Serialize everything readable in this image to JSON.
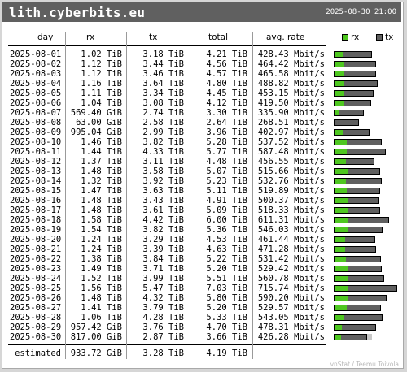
{
  "header": {
    "hostname": "lith.cyberbits.eu",
    "timestamp": "2025-08-30 21:00"
  },
  "columns": {
    "day": "day",
    "rx": "rx",
    "tx": "tx",
    "total": "total",
    "rate": "avg. rate"
  },
  "legend": {
    "rx_label": "rx",
    "tx_label": "tx",
    "rx_color": "#4ec720",
    "tx_color": "#606060"
  },
  "rows": [
    {
      "day": "2025-08-01",
      "rx": "1.02 TiB",
      "tx": "3.18 TiB",
      "total": "4.21 TiB",
      "rate": "428.43 Mbit/s",
      "rx_tib": 1.02,
      "tx_tib": 3.18
    },
    {
      "day": "2025-08-02",
      "rx": "1.12 TiB",
      "tx": "3.44 TiB",
      "total": "4.56 TiB",
      "rate": "464.42 Mbit/s",
      "rx_tib": 1.12,
      "tx_tib": 3.44
    },
    {
      "day": "2025-08-03",
      "rx": "1.12 TiB",
      "tx": "3.46 TiB",
      "total": "4.57 TiB",
      "rate": "465.58 Mbit/s",
      "rx_tib": 1.12,
      "tx_tib": 3.46
    },
    {
      "day": "2025-08-04",
      "rx": "1.16 TiB",
      "tx": "3.64 TiB",
      "total": "4.80 TiB",
      "rate": "488.82 Mbit/s",
      "rx_tib": 1.16,
      "tx_tib": 3.64
    },
    {
      "day": "2025-08-05",
      "rx": "1.11 TiB",
      "tx": "3.34 TiB",
      "total": "4.45 TiB",
      "rate": "453.15 Mbit/s",
      "rx_tib": 1.11,
      "tx_tib": 3.34
    },
    {
      "day": "2025-08-06",
      "rx": "1.04 TiB",
      "tx": "3.08 TiB",
      "total": "4.12 TiB",
      "rate": "419.50 Mbit/s",
      "rx_tib": 1.04,
      "tx_tib": 3.08
    },
    {
      "day": "2025-08-07",
      "rx": "569.40 GiB",
      "tx": "2.74 TiB",
      "total": "3.30 TiB",
      "rate": "335.90 Mbit/s",
      "rx_tib": 0.556,
      "tx_tib": 2.74
    },
    {
      "day": "2025-08-08",
      "rx": "63.00 GiB",
      "tx": "2.58 TiB",
      "total": "2.64 TiB",
      "rate": "268.51 Mbit/s",
      "rx_tib": 0.062,
      "tx_tib": 2.58
    },
    {
      "day": "2025-08-09",
      "rx": "995.04 GiB",
      "tx": "2.99 TiB",
      "total": "3.96 TiB",
      "rate": "402.97 Mbit/s",
      "rx_tib": 0.972,
      "tx_tib": 2.99
    },
    {
      "day": "2025-08-10",
      "rx": "1.46 TiB",
      "tx": "3.82 TiB",
      "total": "5.28 TiB",
      "rate": "537.52 Mbit/s",
      "rx_tib": 1.46,
      "tx_tib": 3.82
    },
    {
      "day": "2025-08-11",
      "rx": "1.44 TiB",
      "tx": "4.33 TiB",
      "total": "5.77 TiB",
      "rate": "587.48 Mbit/s",
      "rx_tib": 1.44,
      "tx_tib": 4.33
    },
    {
      "day": "2025-08-12",
      "rx": "1.37 TiB",
      "tx": "3.11 TiB",
      "total": "4.48 TiB",
      "rate": "456.55 Mbit/s",
      "rx_tib": 1.37,
      "tx_tib": 3.11
    },
    {
      "day": "2025-08-13",
      "rx": "1.48 TiB",
      "tx": "3.58 TiB",
      "total": "5.07 TiB",
      "rate": "515.66 Mbit/s",
      "rx_tib": 1.48,
      "tx_tib": 3.58
    },
    {
      "day": "2025-08-14",
      "rx": "1.32 TiB",
      "tx": "3.92 TiB",
      "total": "5.23 TiB",
      "rate": "532.76 Mbit/s",
      "rx_tib": 1.32,
      "tx_tib": 3.92
    },
    {
      "day": "2025-08-15",
      "rx": "1.47 TiB",
      "tx": "3.63 TiB",
      "total": "5.11 TiB",
      "rate": "519.89 Mbit/s",
      "rx_tib": 1.47,
      "tx_tib": 3.63
    },
    {
      "day": "2025-08-16",
      "rx": "1.48 TiB",
      "tx": "3.43 TiB",
      "total": "4.91 TiB",
      "rate": "500.37 Mbit/s",
      "rx_tib": 1.48,
      "tx_tib": 3.43
    },
    {
      "day": "2025-08-17",
      "rx": "1.48 TiB",
      "tx": "3.61 TiB",
      "total": "5.09 TiB",
      "rate": "518.33 Mbit/s",
      "rx_tib": 1.48,
      "tx_tib": 3.61
    },
    {
      "day": "2025-08-18",
      "rx": "1.58 TiB",
      "tx": "4.42 TiB",
      "total": "6.00 TiB",
      "rate": "611.31 Mbit/s",
      "rx_tib": 1.58,
      "tx_tib": 4.42
    },
    {
      "day": "2025-08-19",
      "rx": "1.54 TiB",
      "tx": "3.82 TiB",
      "total": "5.36 TiB",
      "rate": "546.03 Mbit/s",
      "rx_tib": 1.54,
      "tx_tib": 3.82
    },
    {
      "day": "2025-08-20",
      "rx": "1.24 TiB",
      "tx": "3.29 TiB",
      "total": "4.53 TiB",
      "rate": "461.44 Mbit/s",
      "rx_tib": 1.24,
      "tx_tib": 3.29
    },
    {
      "day": "2025-08-21",
      "rx": "1.24 TiB",
      "tx": "3.39 TiB",
      "total": "4.63 TiB",
      "rate": "471.28 Mbit/s",
      "rx_tib": 1.24,
      "tx_tib": 3.39
    },
    {
      "day": "2025-08-22",
      "rx": "1.38 TiB",
      "tx": "3.84 TiB",
      "total": "5.22 TiB",
      "rate": "531.42 Mbit/s",
      "rx_tib": 1.38,
      "tx_tib": 3.84
    },
    {
      "day": "2025-08-23",
      "rx": "1.49 TiB",
      "tx": "3.71 TiB",
      "total": "5.20 TiB",
      "rate": "529.42 Mbit/s",
      "rx_tib": 1.49,
      "tx_tib": 3.71
    },
    {
      "day": "2025-08-24",
      "rx": "1.52 TiB",
      "tx": "3.99 TiB",
      "total": "5.51 TiB",
      "rate": "560.78 Mbit/s",
      "rx_tib": 1.52,
      "tx_tib": 3.99
    },
    {
      "day": "2025-08-25",
      "rx": "1.56 TiB",
      "tx": "5.47 TiB",
      "total": "7.03 TiB",
      "rate": "715.74 Mbit/s",
      "rx_tib": 1.56,
      "tx_tib": 5.47
    },
    {
      "day": "2025-08-26",
      "rx": "1.48 TiB",
      "tx": "4.32 TiB",
      "total": "5.80 TiB",
      "rate": "590.20 Mbit/s",
      "rx_tib": 1.48,
      "tx_tib": 4.32
    },
    {
      "day": "2025-08-27",
      "rx": "1.41 TiB",
      "tx": "3.79 TiB",
      "total": "5.20 TiB",
      "rate": "529.57 Mbit/s",
      "rx_tib": 1.41,
      "tx_tib": 3.79
    },
    {
      "day": "2025-08-28",
      "rx": "1.06 TiB",
      "tx": "4.28 TiB",
      "total": "5.33 TiB",
      "rate": "543.05 Mbit/s",
      "rx_tib": 1.06,
      "tx_tib": 4.28
    },
    {
      "day": "2025-08-29",
      "rx": "957.42 GiB",
      "tx": "3.76 TiB",
      "total": "4.70 TiB",
      "rate": "478.31 Mbit/s",
      "rx_tib": 0.935,
      "tx_tib": 3.76
    },
    {
      "day": "2025-08-30",
      "rx": "817.00 GiB",
      "tx": "2.87 TiB",
      "total": "3.66 TiB",
      "rate": "426.28 Mbit/s",
      "rx_tib": 0.798,
      "tx_tib": 2.87,
      "estimate_total_tib": 4.19
    }
  ],
  "estimated": {
    "label": "estimated",
    "rx": "933.72 GiB",
    "tx": "3.28 TiB",
    "total": "4.19 TiB"
  },
  "footer": "vnStat / Teemu Toivola"
}
